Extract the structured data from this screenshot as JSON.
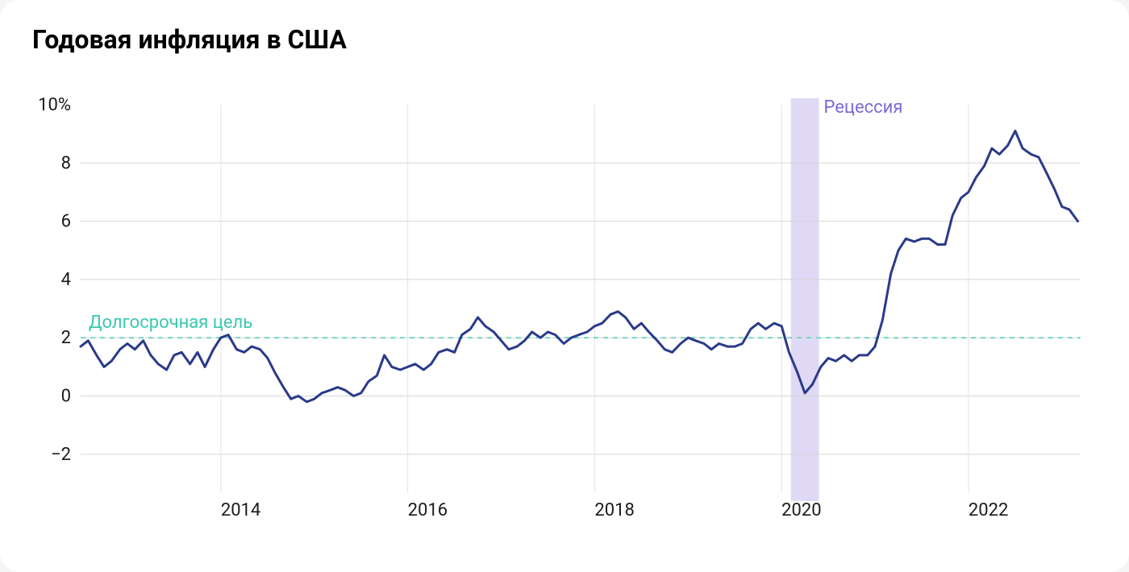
{
  "chart": {
    "type": "line",
    "title": "Годовая инфляция в США",
    "title_fontsize": 32,
    "background_color": "#ffffff",
    "card_border_radius": 24,
    "ylim": [
      -3,
      10
    ],
    "ytick_values": [
      -2,
      0,
      2,
      4,
      6,
      8,
      10
    ],
    "ytick_labels": [
      "−2",
      "0",
      "2",
      "4",
      "6",
      "8",
      "10%"
    ],
    "ytick_fontsize": 22,
    "ytick_color": "#1a1a1a",
    "x_start": 2012.5,
    "x_end": 2023.2,
    "xtick_values": [
      2014,
      2016,
      2018,
      2020,
      2022
    ],
    "xtick_labels": [
      "2014",
      "2016",
      "2018",
      "2020",
      "2022"
    ],
    "xtick_fontsize": 22,
    "xtick_color": "#1a1a1a",
    "gridline_color": "#d6d6d6",
    "gridline_width": 1,
    "vgrid_color": "#e4e4e4",
    "target_line": {
      "value": 2,
      "color": "#76d6c5",
      "dash": "6,6",
      "label": "Долгосрочная цель",
      "label_color": "#3ac7b0",
      "label_fontsize": 22
    },
    "recession_band": {
      "x_start": 2020.1,
      "x_end": 2020.4,
      "fill": "#d8d0f3",
      "opacity": 0.8,
      "label": "Рецессия",
      "label_color": "#7e68d6",
      "label_fontsize": 22
    },
    "series": {
      "color": "#2a3a8a",
      "line_width": 3,
      "points": [
        [
          2012.5,
          1.7
        ],
        [
          2012.58,
          1.9
        ],
        [
          2012.67,
          1.4
        ],
        [
          2012.75,
          1.0
        ],
        [
          2012.83,
          1.2
        ],
        [
          2012.92,
          1.6
        ],
        [
          2013.0,
          1.8
        ],
        [
          2013.08,
          1.6
        ],
        [
          2013.17,
          1.9
        ],
        [
          2013.25,
          1.4
        ],
        [
          2013.33,
          1.1
        ],
        [
          2013.42,
          0.9
        ],
        [
          2013.5,
          1.4
        ],
        [
          2013.58,
          1.5
        ],
        [
          2013.67,
          1.1
        ],
        [
          2013.75,
          1.5
        ],
        [
          2013.83,
          1.0
        ],
        [
          2013.92,
          1.6
        ],
        [
          2014.0,
          2.0
        ],
        [
          2014.08,
          2.1
        ],
        [
          2014.17,
          1.6
        ],
        [
          2014.25,
          1.5
        ],
        [
          2014.33,
          1.7
        ],
        [
          2014.42,
          1.6
        ],
        [
          2014.5,
          1.3
        ],
        [
          2014.58,
          0.8
        ],
        [
          2014.67,
          0.3
        ],
        [
          2014.75,
          -0.1
        ],
        [
          2014.83,
          0.0
        ],
        [
          2014.92,
          -0.2
        ],
        [
          2015.0,
          -0.1
        ],
        [
          2015.08,
          0.1
        ],
        [
          2015.17,
          0.2
        ],
        [
          2015.25,
          0.3
        ],
        [
          2015.33,
          0.2
        ],
        [
          2015.42,
          0.0
        ],
        [
          2015.5,
          0.1
        ],
        [
          2015.58,
          0.5
        ],
        [
          2015.67,
          0.7
        ],
        [
          2015.75,
          1.4
        ],
        [
          2015.83,
          1.0
        ],
        [
          2015.92,
          0.9
        ],
        [
          2016.0,
          1.0
        ],
        [
          2016.08,
          1.1
        ],
        [
          2016.17,
          0.9
        ],
        [
          2016.25,
          1.1
        ],
        [
          2016.33,
          1.5
        ],
        [
          2016.42,
          1.6
        ],
        [
          2016.5,
          1.5
        ],
        [
          2016.58,
          2.1
        ],
        [
          2016.67,
          2.3
        ],
        [
          2016.75,
          2.7
        ],
        [
          2016.83,
          2.4
        ],
        [
          2016.92,
          2.2
        ],
        [
          2017.0,
          1.9
        ],
        [
          2017.08,
          1.6
        ],
        [
          2017.17,
          1.7
        ],
        [
          2017.25,
          1.9
        ],
        [
          2017.33,
          2.2
        ],
        [
          2017.42,
          2.0
        ],
        [
          2017.5,
          2.2
        ],
        [
          2017.58,
          2.1
        ],
        [
          2017.67,
          1.8
        ],
        [
          2017.75,
          2.0
        ],
        [
          2017.83,
          2.1
        ],
        [
          2017.92,
          2.2
        ],
        [
          2018.0,
          2.4
        ],
        [
          2018.08,
          2.5
        ],
        [
          2018.17,
          2.8
        ],
        [
          2018.25,
          2.9
        ],
        [
          2018.33,
          2.7
        ],
        [
          2018.42,
          2.3
        ],
        [
          2018.5,
          2.5
        ],
        [
          2018.58,
          2.2
        ],
        [
          2018.67,
          1.9
        ],
        [
          2018.75,
          1.6
        ],
        [
          2018.83,
          1.5
        ],
        [
          2018.92,
          1.8
        ],
        [
          2019.0,
          2.0
        ],
        [
          2019.08,
          1.9
        ],
        [
          2019.17,
          1.8
        ],
        [
          2019.25,
          1.6
        ],
        [
          2019.33,
          1.8
        ],
        [
          2019.42,
          1.7
        ],
        [
          2019.5,
          1.7
        ],
        [
          2019.58,
          1.8
        ],
        [
          2019.67,
          2.3
        ],
        [
          2019.75,
          2.5
        ],
        [
          2019.83,
          2.3
        ],
        [
          2019.92,
          2.5
        ],
        [
          2020.0,
          2.4
        ],
        [
          2020.08,
          1.5
        ],
        [
          2020.17,
          0.8
        ],
        [
          2020.25,
          0.1
        ],
        [
          2020.33,
          0.4
        ],
        [
          2020.42,
          1.0
        ],
        [
          2020.5,
          1.3
        ],
        [
          2020.58,
          1.2
        ],
        [
          2020.67,
          1.4
        ],
        [
          2020.75,
          1.2
        ],
        [
          2020.83,
          1.4
        ],
        [
          2020.92,
          1.4
        ],
        [
          2021.0,
          1.7
        ],
        [
          2021.08,
          2.6
        ],
        [
          2021.17,
          4.2
        ],
        [
          2021.25,
          5.0
        ],
        [
          2021.33,
          5.4
        ],
        [
          2021.42,
          5.3
        ],
        [
          2021.5,
          5.4
        ],
        [
          2021.58,
          5.4
        ],
        [
          2021.67,
          5.2
        ],
        [
          2021.75,
          5.2
        ],
        [
          2021.83,
          6.2
        ],
        [
          2021.92,
          6.8
        ],
        [
          2022.0,
          7.0
        ],
        [
          2022.08,
          7.5
        ],
        [
          2022.17,
          7.9
        ],
        [
          2022.25,
          8.5
        ],
        [
          2022.33,
          8.3
        ],
        [
          2022.42,
          8.6
        ],
        [
          2022.5,
          9.1
        ],
        [
          2022.58,
          8.5
        ],
        [
          2022.67,
          8.3
        ],
        [
          2022.75,
          8.2
        ],
        [
          2022.83,
          7.7
        ],
        [
          2022.92,
          7.1
        ],
        [
          2023.0,
          6.5
        ],
        [
          2023.08,
          6.4
        ],
        [
          2023.17,
          6.0
        ]
      ]
    }
  }
}
